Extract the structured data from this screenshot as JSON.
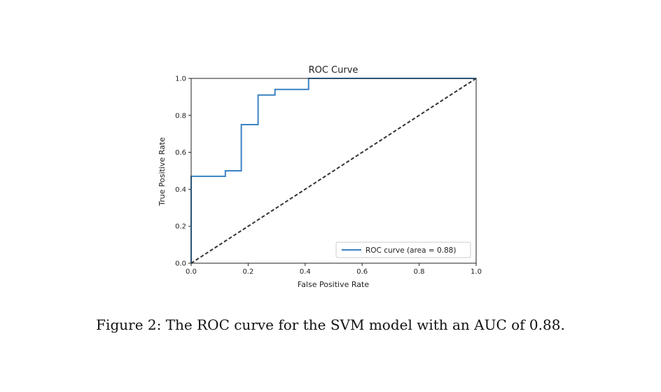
{
  "chart_data": {
    "type": "line",
    "title": "ROC Curve",
    "xlabel": "False Positive Rate",
    "ylabel": "True Positive Rate",
    "xlim": [
      0.0,
      1.0
    ],
    "ylim": [
      0.0,
      1.0
    ],
    "x_ticks": [
      "0.0",
      "0.2",
      "0.4",
      "0.6",
      "0.8",
      "1.0"
    ],
    "y_ticks": [
      "0.0",
      "0.2",
      "0.4",
      "0.6",
      "0.8",
      "1.0"
    ],
    "grid": false,
    "legend_position": "lower-right",
    "series": [
      {
        "name": "ROC curve (area = 0.88)",
        "color": "#3b82c4",
        "style": "solid",
        "x": [
          0.0,
          0.0,
          0.12,
          0.12,
          0.176,
          0.176,
          0.235,
          0.235,
          0.294,
          0.294,
          0.412,
          0.412,
          1.0
        ],
        "y": [
          0.0,
          0.47,
          0.47,
          0.5,
          0.5,
          0.75,
          0.75,
          0.91,
          0.91,
          0.94,
          0.94,
          1.0,
          1.0
        ]
      },
      {
        "color": "#333333",
        "style": "dashed",
        "x": [
          0.0,
          1.0
        ],
        "y": [
          0.0,
          1.0
        ]
      }
    ]
  },
  "caption": "Figure 2: The ROC curve for the SVM model with an AUC of 0.88."
}
